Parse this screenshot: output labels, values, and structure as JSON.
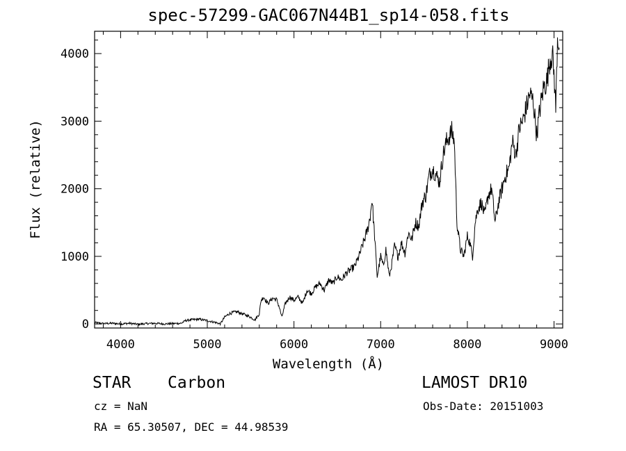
{
  "chart_data": {
    "type": "line",
    "title": "spec-57299-GAC067N44B1_sp14-058.fits",
    "xlabel": "Wavelength (Å)",
    "ylabel": "Flux (relative)",
    "xlim": [
      3700,
      9100
    ],
    "ylim": [
      -60,
      4330
    ],
    "xticks": [
      4000,
      5000,
      6000,
      7000,
      8000,
      9000
    ],
    "yticks": [
      0,
      1000,
      2000,
      3000,
      4000
    ],
    "grid": false,
    "series": [
      {
        "x": [
          3700,
          3800,
          3900,
          4000,
          4100,
          4200,
          4300,
          4400,
          4500,
          4600,
          4700,
          4750,
          4800,
          4900,
          5000,
          5100,
          5150,
          5200,
          5250,
          5300,
          5350,
          5400,
          5450,
          5500,
          5550,
          5600,
          5620,
          5650,
          5700,
          5750,
          5800,
          5830,
          5860,
          5900,
          5950,
          6000,
          6050,
          6100,
          6150,
          6200,
          6250,
          6300,
          6350,
          6400,
          6450,
          6500,
          6550,
          6600,
          6650,
          6700,
          6750,
          6800,
          6850,
          6880,
          6900,
          6930,
          6960,
          7000,
          7030,
          7060,
          7100,
          7130,
          7160,
          7200,
          7240,
          7280,
          7320,
          7360,
          7400,
          7440,
          7480,
          7520,
          7560,
          7600,
          7640,
          7680,
          7720,
          7760,
          7800,
          7820,
          7850,
          7880,
          7920,
          7960,
          8000,
          8030,
          8060,
          8090,
          8120,
          8160,
          8200,
          8240,
          8280,
          8320,
          8360,
          8400,
          8440,
          8480,
          8520,
          8560,
          8600,
          8640,
          8680,
          8720,
          8760,
          8800,
          8840,
          8880,
          8920,
          8950,
          8980,
          9000,
          9020,
          9040,
          9060
        ],
        "y": [
          20,
          5,
          10,
          0,
          10,
          -5,
          5,
          10,
          0,
          5,
          10,
          50,
          60,
          70,
          50,
          20,
          0,
          100,
          150,
          170,
          180,
          150,
          130,
          100,
          60,
          150,
          350,
          400,
          300,
          380,
          360,
          250,
          100,
          300,
          400,
          350,
          400,
          300,
          500,
          450,
          550,
          600,
          500,
          650,
          600,
          700,
          650,
          750,
          800,
          850,
          1000,
          1200,
          1400,
          1600,
          1850,
          1300,
          700,
          1000,
          850,
          1100,
          700,
          900,
          1150,
          1000,
          1200,
          1050,
          1350,
          1250,
          1500,
          1450,
          1800,
          1900,
          2200,
          2300,
          2200,
          2100,
          2500,
          2700,
          2800,
          2850,
          2700,
          1500,
          1100,
          1000,
          1300,
          1200,
          1000,
          1500,
          1700,
          1800,
          1600,
          1900,
          2000,
          1500,
          1800,
          2000,
          2200,
          2300,
          2700,
          2500,
          2900,
          3000,
          3200,
          3400,
          3300,
          2800,
          3200,
          3500,
          3600,
          3900,
          4000,
          3700,
          3200,
          4250,
          4150
        ]
      }
    ]
  },
  "labels": {
    "obj_class": "STAR",
    "obj_subclass": "Carbon",
    "survey": "LAMOST DR10",
    "cz": "cz = NaN",
    "obs_date": "Obs-Date: 20151003",
    "radec": "RA =  65.30507, DEC =  44.98539"
  }
}
